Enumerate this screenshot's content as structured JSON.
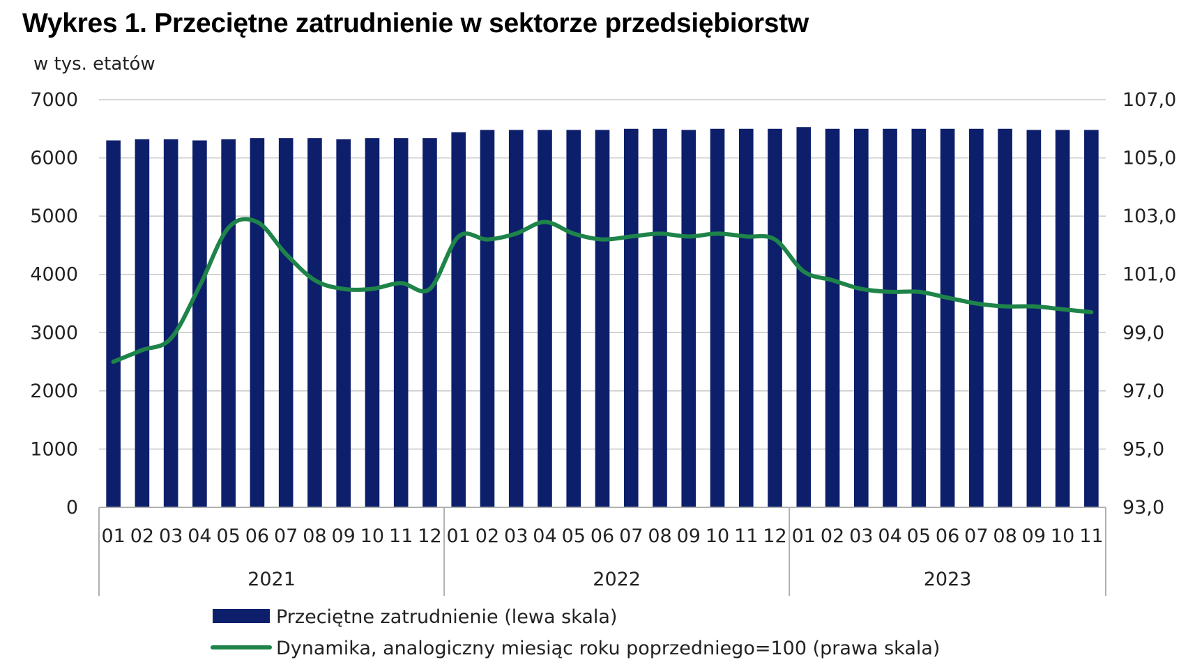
{
  "chart_data": {
    "type": "bar",
    "title": "Wykres 1. Przeciętne zatrudnienie w sektorze przedsiębiorstw",
    "ylabel": "w tys. etatów",
    "categories": [
      "01",
      "02",
      "03",
      "04",
      "05",
      "06",
      "07",
      "08",
      "09",
      "10",
      "11",
      "12",
      "01",
      "02",
      "03",
      "04",
      "05",
      "06",
      "07",
      "08",
      "09",
      "10",
      "11",
      "12",
      "01",
      "02",
      "03",
      "04",
      "05",
      "06",
      "07",
      "08",
      "09",
      "10",
      "11"
    ],
    "groups": [
      {
        "label": "2021",
        "count": 12
      },
      {
        "label": "2022",
        "count": 12
      },
      {
        "label": "2023",
        "count": 11
      }
    ],
    "y_left": {
      "min": 0,
      "max": 7000,
      "ticks": [
        "0",
        "1000",
        "2000",
        "3000",
        "4000",
        "5000",
        "6000",
        "7000"
      ]
    },
    "y_right": {
      "min": 93,
      "max": 107,
      "ticks": [
        "93,0",
        "95,0",
        "97,0",
        "99,0",
        "101,0",
        "103,0",
        "105,0",
        "107,0"
      ]
    },
    "grid": true,
    "legend_position": "bottom",
    "series": [
      {
        "name": "Przeciętne zatrudnienie (lewa skala)",
        "type": "bar",
        "axis": "left",
        "color": "#0d1f6b",
        "values": [
          6300,
          6320,
          6320,
          6300,
          6320,
          6340,
          6340,
          6340,
          6320,
          6340,
          6340,
          6340,
          6440,
          6480,
          6480,
          6480,
          6480,
          6480,
          6500,
          6500,
          6480,
          6500,
          6500,
          6500,
          6530,
          6500,
          6500,
          6500,
          6500,
          6500,
          6500,
          6500,
          6480,
          6480,
          6480
        ]
      },
      {
        "name": "Dynamika, analogiczny miesiąc roku poprzedniego=100 (prawa skala)",
        "type": "line",
        "axis": "right",
        "color": "#1e8449",
        "values": [
          98.0,
          98.4,
          98.8,
          100.6,
          102.6,
          102.8,
          101.7,
          100.8,
          100.5,
          100.5,
          100.7,
          100.5,
          102.3,
          102.2,
          102.4,
          102.8,
          102.4,
          102.2,
          102.3,
          102.4,
          102.3,
          102.4,
          102.3,
          102.2,
          101.1,
          100.8,
          100.5,
          100.4,
          100.4,
          100.2,
          100.0,
          99.9,
          99.9,
          99.8,
          99.7
        ]
      }
    ]
  }
}
